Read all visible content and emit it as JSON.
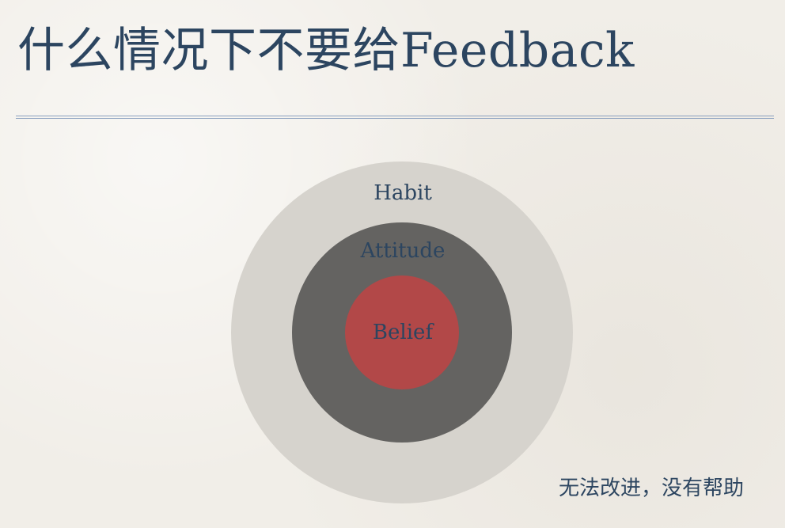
{
  "slide": {
    "title": "什么情况下不要给Feedback",
    "caption": "无法改进，没有帮助"
  },
  "diagram": {
    "rings": [
      {
        "label": "Habit",
        "color": "#d6d3cd"
      },
      {
        "label": "Attitude",
        "color": "#646361"
      },
      {
        "label": "Belief",
        "color": "#b24848"
      }
    ]
  },
  "colors": {
    "text": "#2c4560",
    "rule": "#8aa0bf",
    "background": "#f1eee8"
  }
}
